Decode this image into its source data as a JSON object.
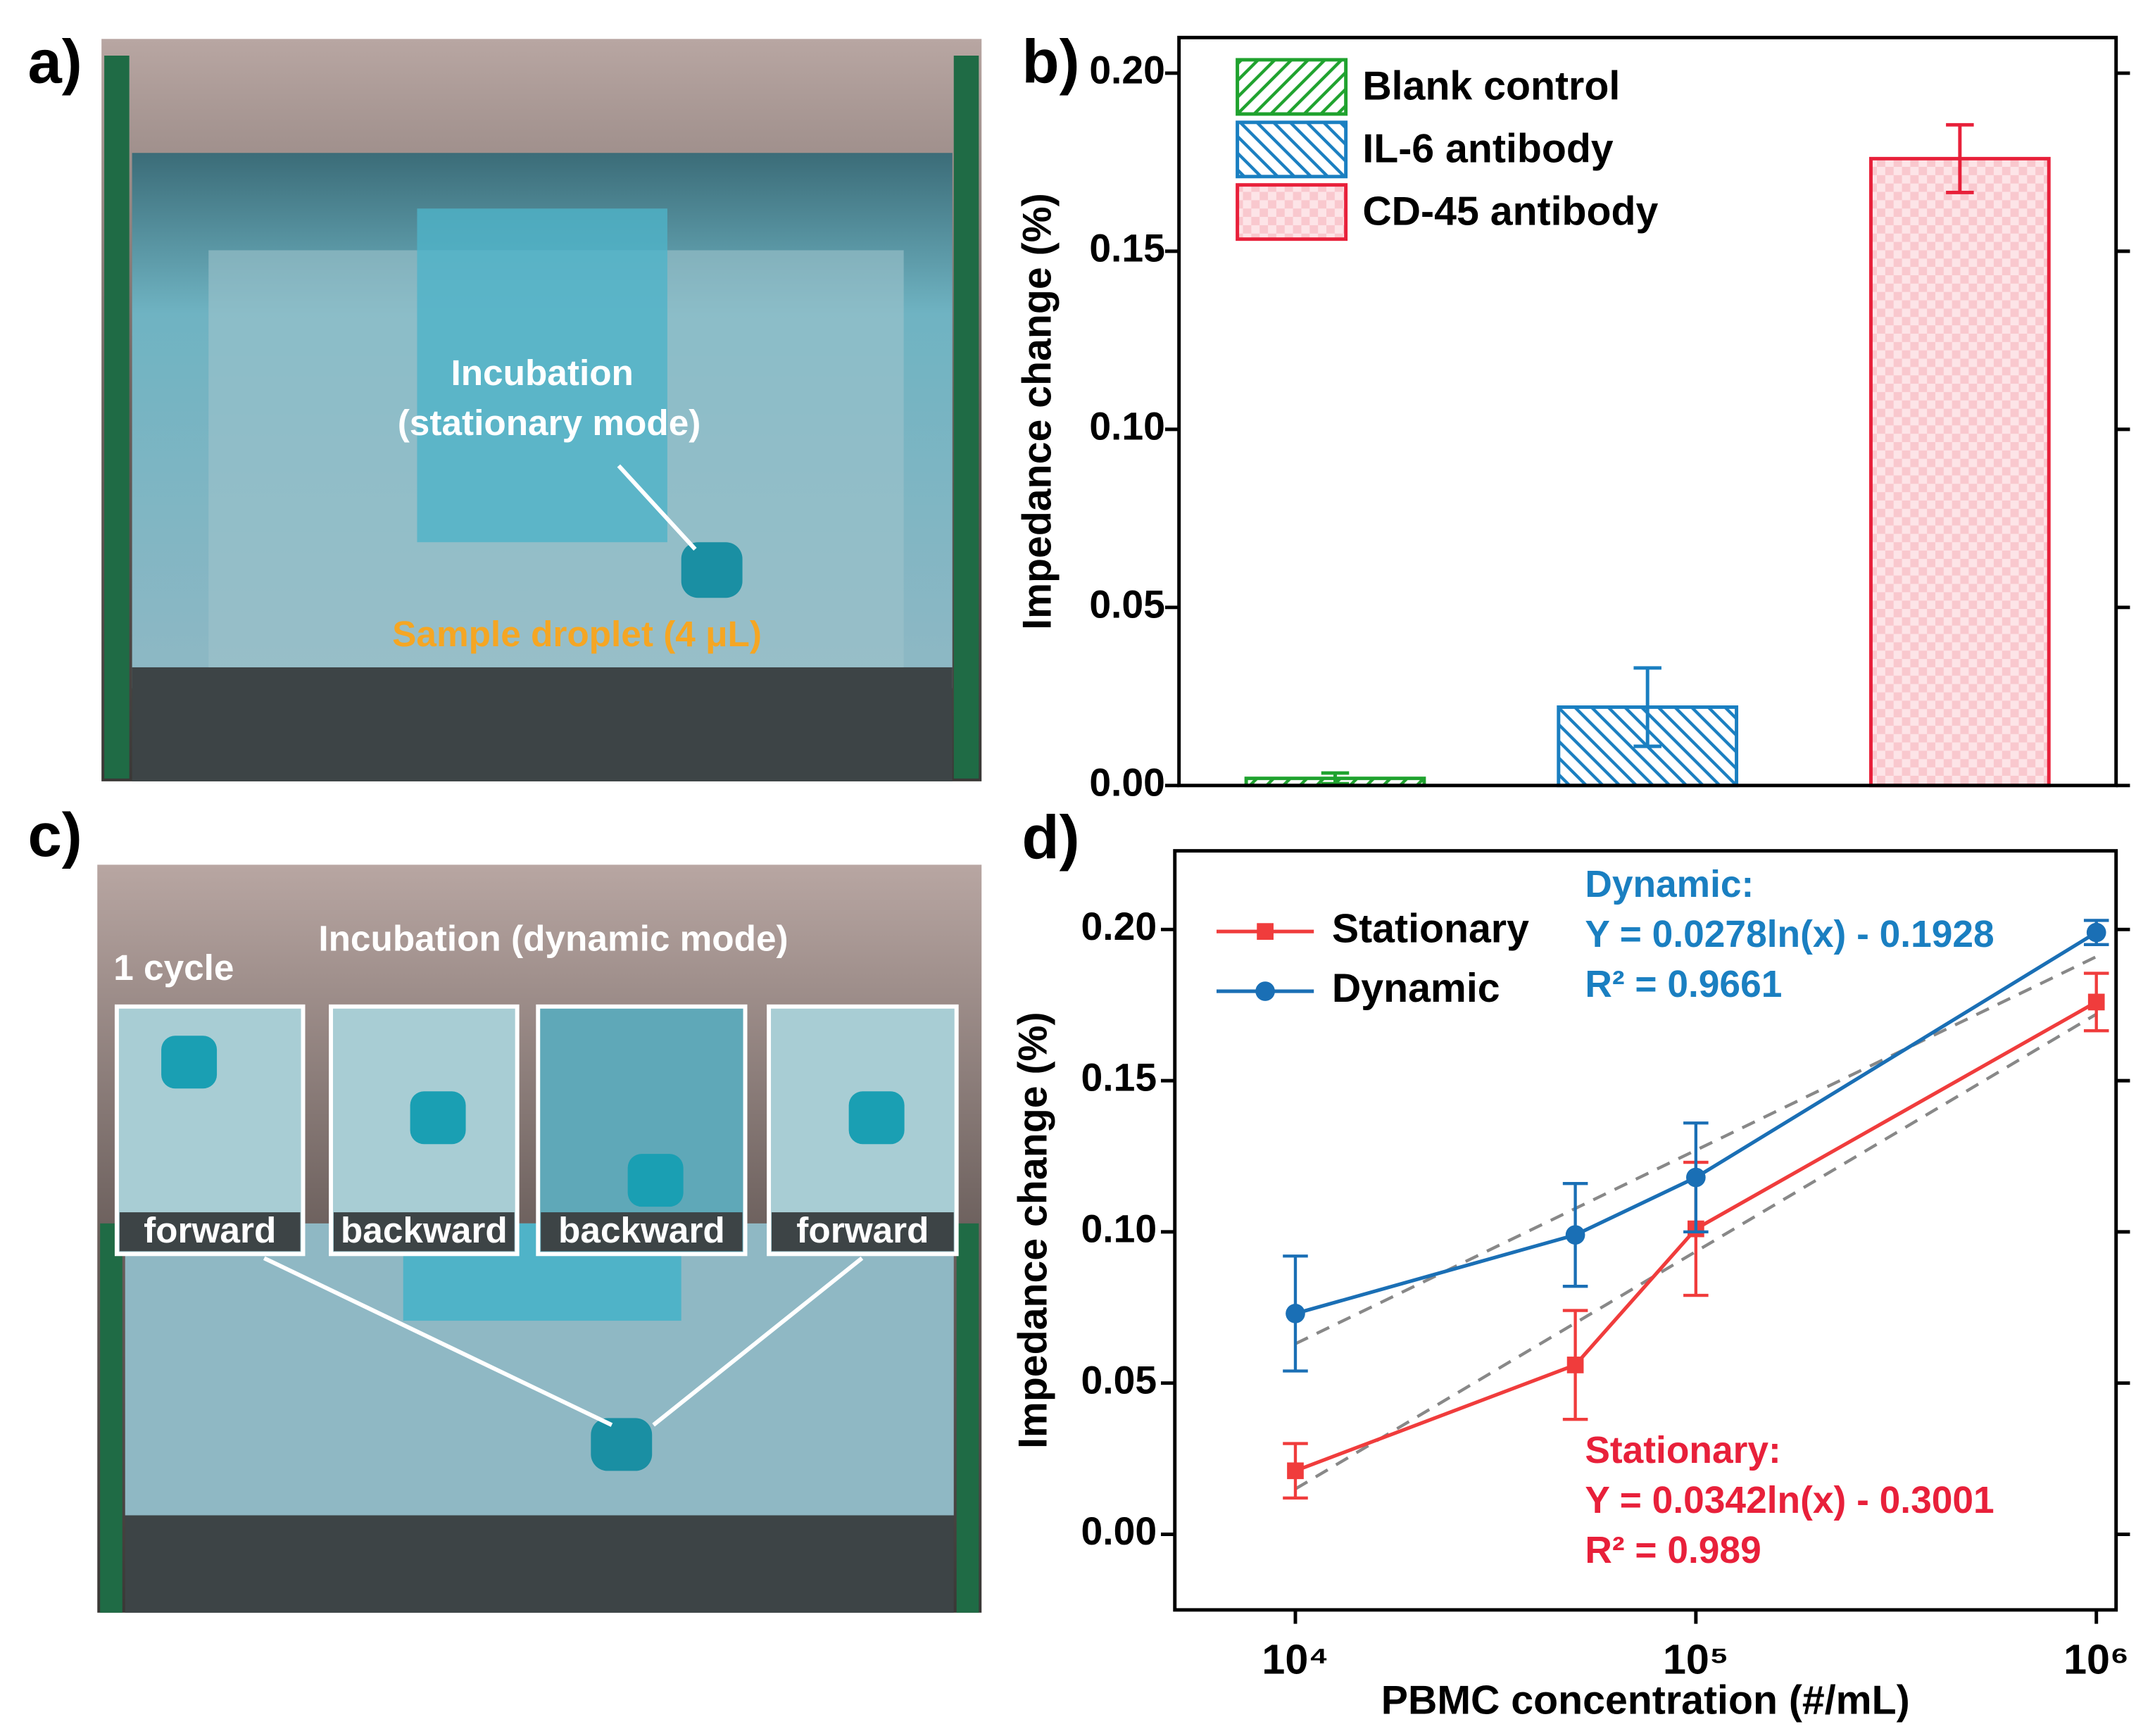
{
  "panels": {
    "labels": [
      "a)",
      "b)",
      "c)",
      "d)"
    ]
  },
  "photo_a": {
    "annotation": [
      "Incubation",
      "(stationary mode)"
    ],
    "sample": "Sample droplet (4 μL)"
  },
  "photo_c": {
    "title": "Incubation (dynamic mode)",
    "cycle": "1 cycle",
    "insets": [
      "forward",
      "backward",
      "backward",
      "forward"
    ]
  },
  "chart_data": [
    {
      "type": "bar",
      "ylabel": "Impedance change (%)",
      "ylim": [
        0,
        0.21
      ],
      "yticks": [
        {
          "value": 0,
          "label": "0.00"
        },
        {
          "value": 0.05,
          "label": "0.05"
        },
        {
          "value": 0.1,
          "label": "0.10"
        },
        {
          "value": 0.15,
          "label": "0.15"
        },
        {
          "value": 0.2,
          "label": "0.20"
        }
      ],
      "legend": "upper left",
      "series": [
        {
          "name": "Blank control",
          "color": "#1fa22e",
          "hatch": "diag-up",
          "values": [
            0.002
          ],
          "errors": [
            0.0015
          ]
        },
        {
          "name": "IL-6 antibody",
          "color": "#1a7fc1",
          "hatch": "diag-down",
          "values": [
            0.022
          ],
          "errors": [
            0.011
          ]
        },
        {
          "name": "CD-45 antibody",
          "color": "#e8203a",
          "hatch": "check",
          "values": [
            0.176
          ],
          "errors": [
            0.0095
          ]
        }
      ]
    },
    {
      "type": "line",
      "xlabel": "PBMC concentration (#/mL)",
      "ylabel": "Impedance change (%)",
      "xscale": "log",
      "xlim": [
        5000,
        1120000
      ],
      "xticks": [
        {
          "value": 10000,
          "label": "10⁴"
        },
        {
          "value": 100000,
          "label": "10⁵"
        },
        {
          "value": 1000000,
          "label": "10⁶"
        }
      ],
      "ylim": [
        -0.025,
        0.226
      ],
      "yticks": [
        {
          "value": 0,
          "label": "0.00"
        },
        {
          "value": 0.05,
          "label": "0.05"
        },
        {
          "value": 0.1,
          "label": "0.10"
        },
        {
          "value": 0.15,
          "label": "0.15"
        },
        {
          "value": 0.2,
          "label": "0.20"
        }
      ],
      "legend": "upper left",
      "series": [
        {
          "name": "Stationary",
          "color": "#f03c3c",
          "marker": "square",
          "x": [
            10000,
            50000,
            100000,
            1000000
          ],
          "values": [
            0.021,
            0.056,
            0.101,
            0.176
          ],
          "errors": [
            0.009,
            0.018,
            0.022,
            0.0095
          ],
          "fit": {
            "x": [
              10000,
              1000000
            ],
            "values": [
              0.015,
              0.172
            ]
          }
        },
        {
          "name": "Dynamic",
          "color": "#1a6fb5",
          "marker": "circle",
          "x": [
            10000,
            50000,
            100000,
            1000000
          ],
          "values": [
            0.073,
            0.099,
            0.118,
            0.199
          ],
          "errors": [
            0.019,
            0.017,
            0.018,
            0.004
          ],
          "fit": {
            "x": [
              10000,
              1000000
            ],
            "values": [
              0.063,
              0.191
            ]
          }
        }
      ],
      "fit_color": "#888888",
      "annotations": [
        {
          "color": "#1a7fc1",
          "lines": [
            "Dynamic:",
            "Y = 0.0278ln(x) - 0.1928",
            "R² = 0.9661"
          ]
        },
        {
          "color": "#e8203a",
          "lines": [
            "Stationary:",
            "Y = 0.0342ln(x) - 0.3001",
            "R² = 0.989"
          ]
        }
      ]
    }
  ]
}
